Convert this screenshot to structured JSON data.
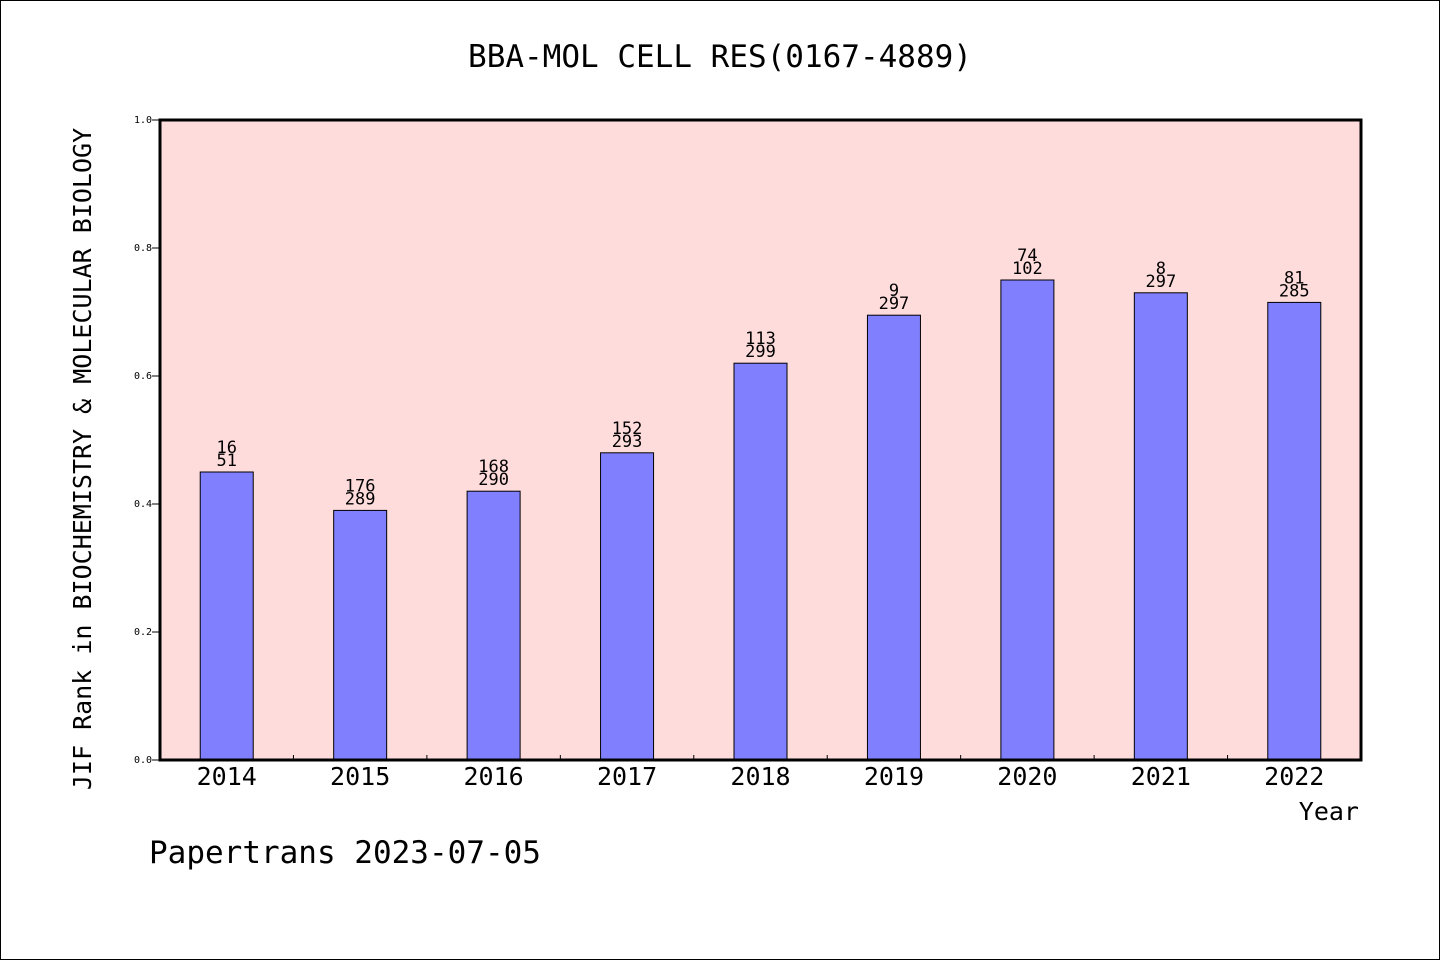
{
  "chart_data": {
    "type": "bar",
    "title": "BBA-MOL CELL RES(0167-4889)",
    "xlabel": "Year",
    "ylabel": "JIF Rank in BIOCHEMISTRY & MOLECULAR BIOLOGY",
    "ylim": [
      0,
      1.0
    ],
    "yticks": [
      "0.0",
      "0.2",
      "0.4",
      "0.6",
      "0.8",
      "1.0"
    ],
    "categories": [
      "2014",
      "2015",
      "2016",
      "2017",
      "2018",
      "2019",
      "2020",
      "2021",
      "2022"
    ],
    "values": [
      0.45,
      0.39,
      0.42,
      0.48,
      0.62,
      0.695,
      0.75,
      0.73,
      0.715
    ],
    "rank": [
      "16",
      "176",
      "168",
      "152",
      "113",
      "9",
      "74",
      "8",
      "81"
    ],
    "total": [
      "51",
      "289",
      "290",
      "293",
      "299",
      "297",
      "102",
      "297",
      "285"
    ],
    "grid": false,
    "colors": {
      "plot_background": "#ffdcdc",
      "bar_fill": "#8080ff",
      "bar_stroke": "#000000"
    }
  },
  "footer": "Papertrans 2023-07-05"
}
